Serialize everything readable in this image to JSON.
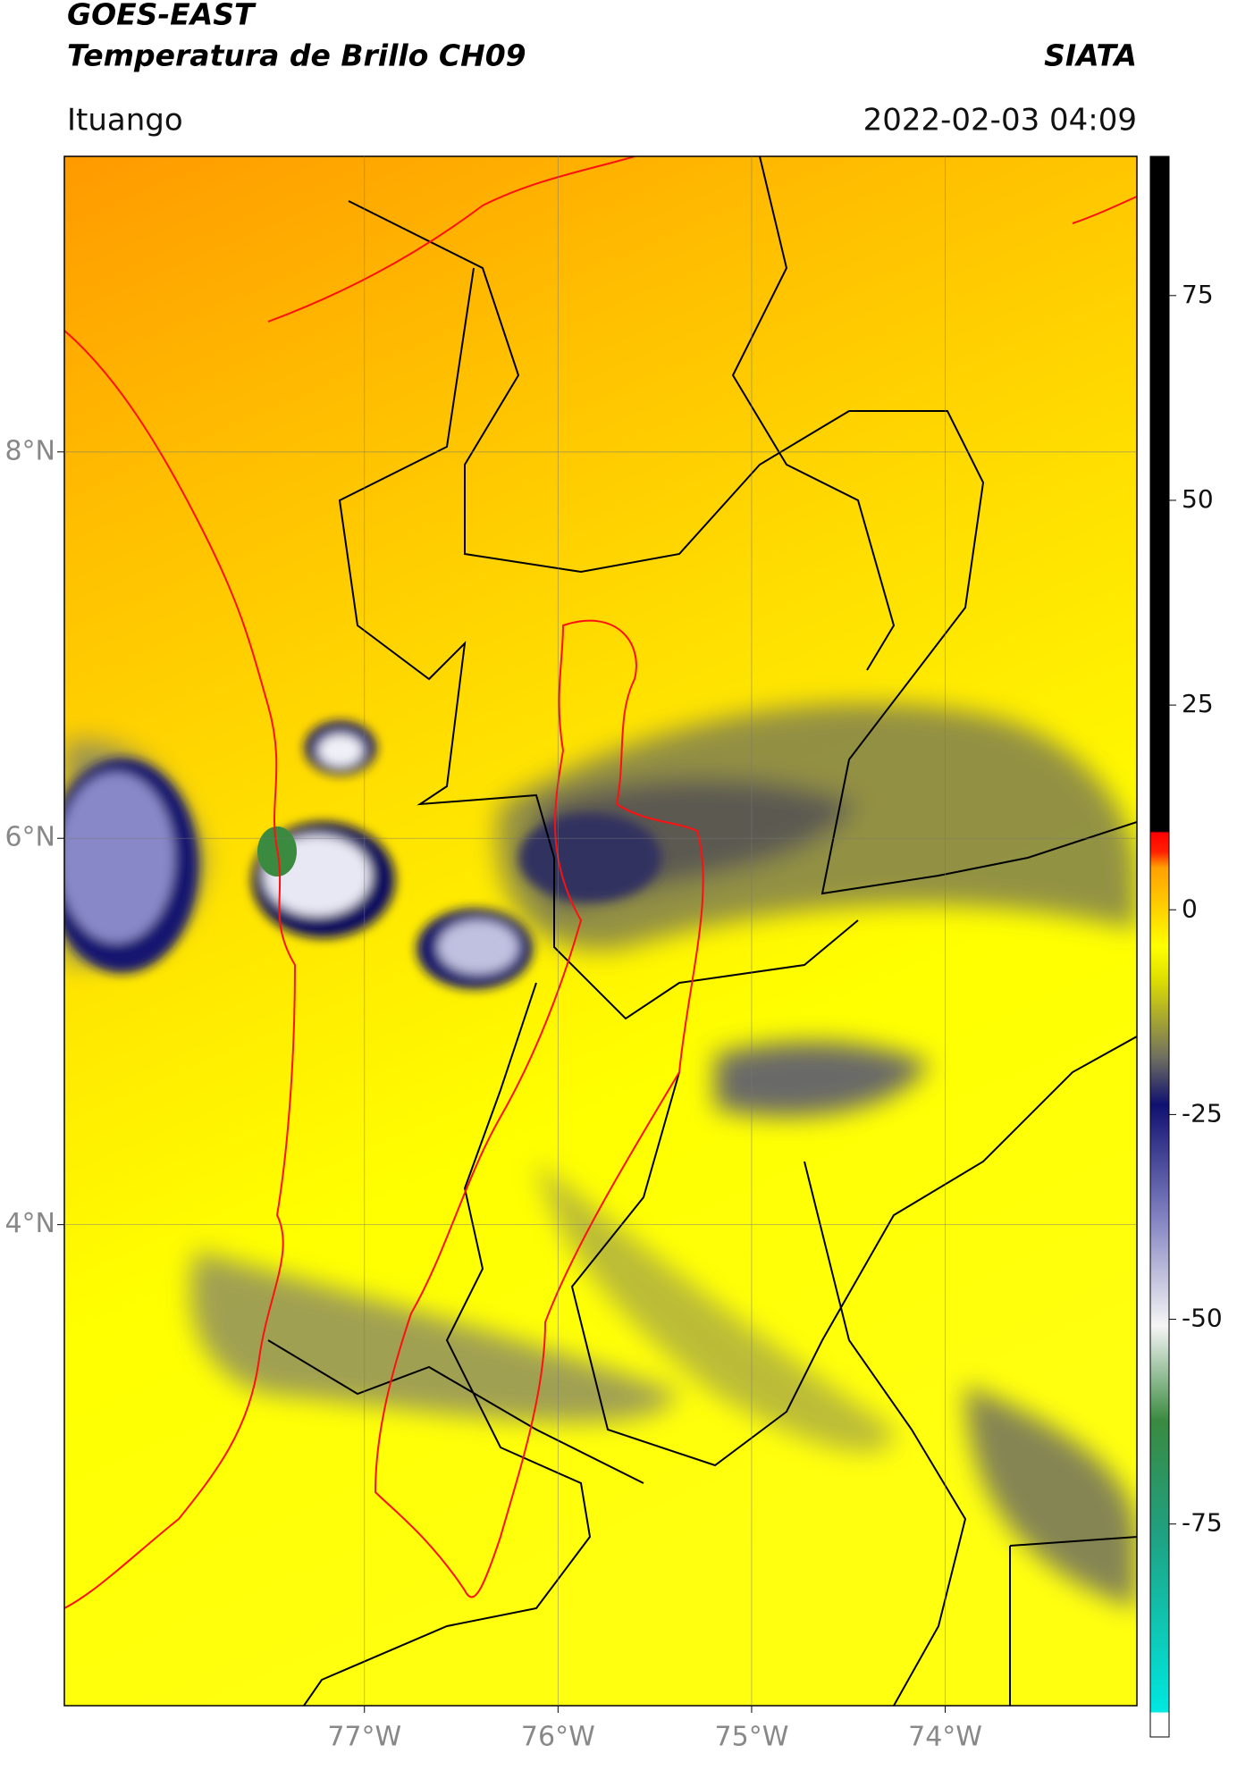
{
  "header": {
    "title": "GOES-EAST",
    "subtitle": "Temperatura de Brillo CH09",
    "organization": "SIATA",
    "location": "Ituango",
    "datetime": "2022-02-03 04:09"
  },
  "map": {
    "xlim": [
      -78.55,
      -73.01
    ],
    "ylim": [
      1.51,
      9.53
    ],
    "xticks": [
      {
        "value": -77,
        "label": "77°W"
      },
      {
        "value": -76,
        "label": "76°W"
      },
      {
        "value": -75,
        "label": "75°W"
      },
      {
        "value": -74,
        "label": "74°W"
      }
    ],
    "yticks": [
      {
        "value": 8,
        "label": "8°N"
      },
      {
        "value": 6,
        "label": "6°N"
      },
      {
        "value": 4,
        "label": "4°N"
      }
    ]
  },
  "colorbar": {
    "lim": [
      -101,
      92
    ],
    "ticks": [
      75,
      50,
      25,
      0,
      -25,
      -50,
      -75
    ]
  }
}
